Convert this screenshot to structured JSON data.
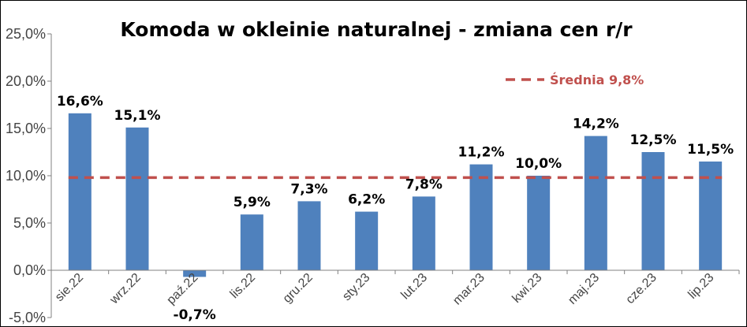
{
  "chart_data": {
    "type": "bar",
    "title": "Komoda w okleinie naturalnej - zmiana cen r/r",
    "categories": [
      "sie.22",
      "wrz.22",
      "paź.22",
      "lis.22",
      "gru.22",
      "sty.23",
      "lut.23",
      "mar.23",
      "kwi.23",
      "maj.23",
      "cze.23",
      "lip.23"
    ],
    "values": [
      16.6,
      15.1,
      -0.7,
      5.9,
      7.3,
      6.2,
      7.8,
      11.2,
      10.0,
      14.2,
      12.5,
      11.5
    ],
    "value_labels": [
      "16,6%",
      "15,1%",
      "-0,7%",
      "5,9%",
      "7,3%",
      "6,2%",
      "7,8%",
      "11,2%",
      "10,0%",
      "14,2%",
      "12,5%",
      "11,5%"
    ],
    "average": {
      "name": "Średnia 9,8%",
      "value": 9.8,
      "color": "#C0504D"
    },
    "ylim": [
      -5,
      25
    ],
    "yticks": [
      25,
      20,
      15,
      10,
      5,
      0,
      -5
    ],
    "ytick_labels": [
      "25,0%",
      "20,0%",
      "15,0%",
      "10,0%",
      "5,0%",
      "0,0%",
      "-5,0%"
    ],
    "xlabel": "",
    "ylabel": "",
    "bar_color": "#4F81BD",
    "grid": false,
    "legend_position": "top-right"
  }
}
